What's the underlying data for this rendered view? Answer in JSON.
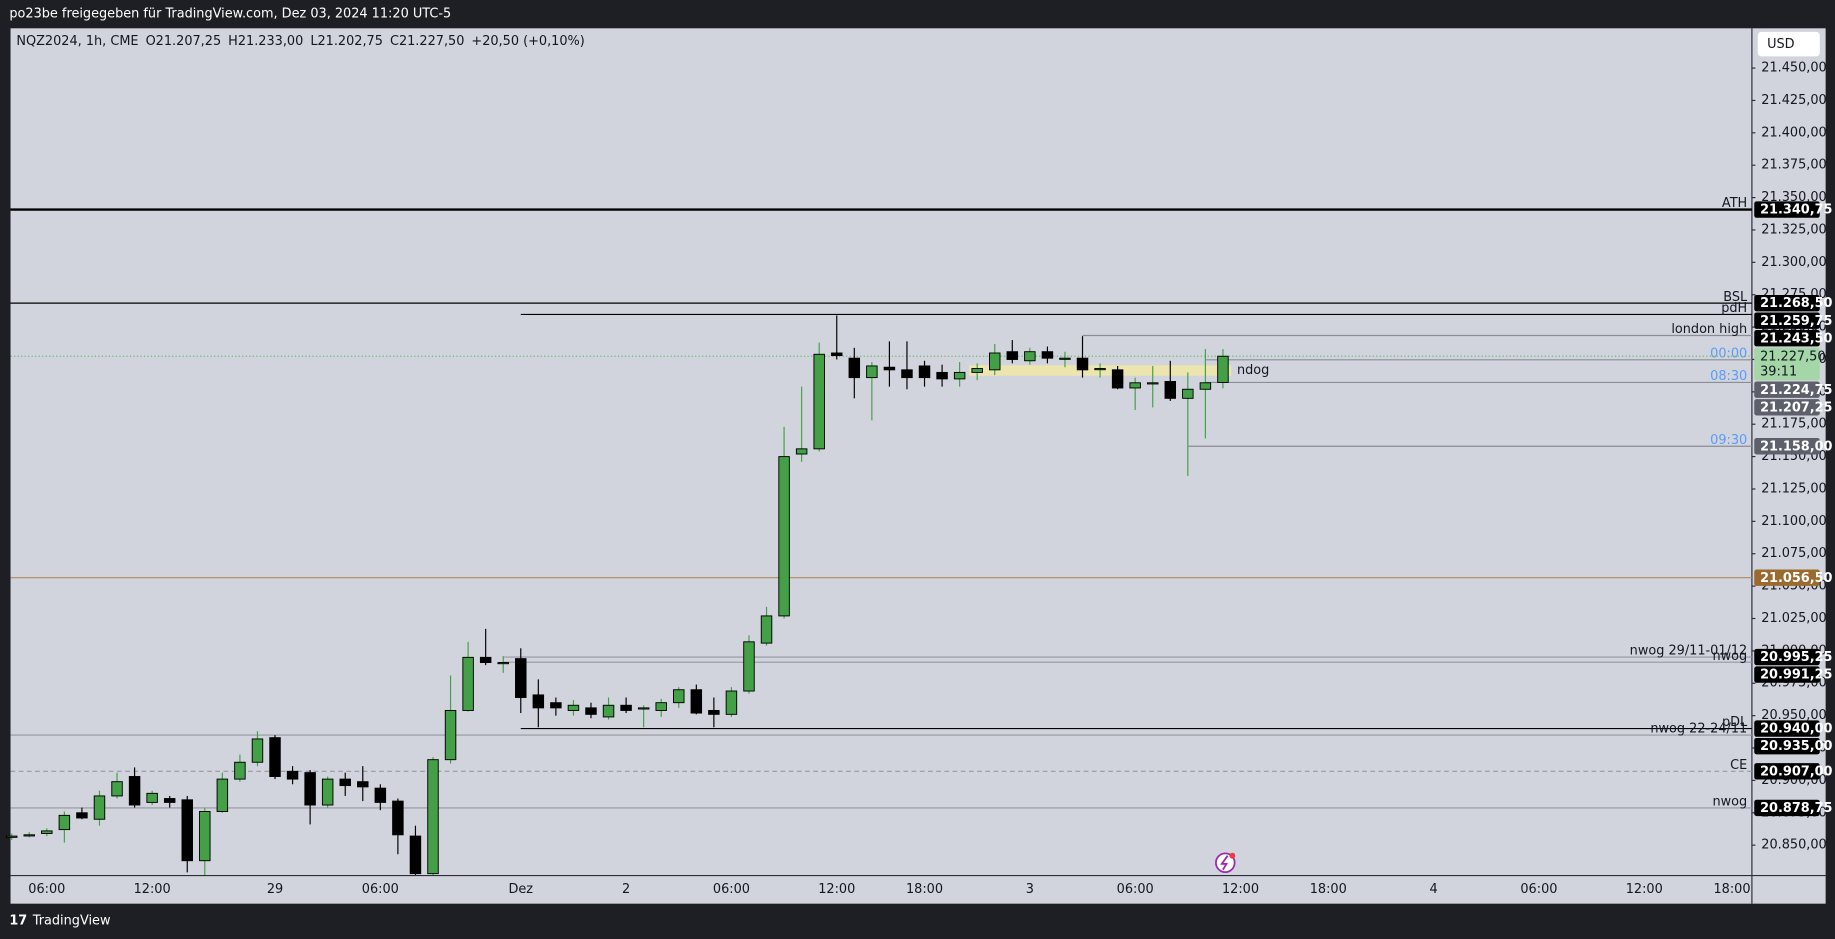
{
  "header": {
    "title": "po23be freigegeben für TradingView.com, Dez 03, 2024 11:20 UTC-5"
  },
  "footer": {
    "brand": "TradingView"
  },
  "chart_data": {
    "type": "candlestick",
    "symbol": "NQZ2024, 1h, CME",
    "ohlc_text": [
      "O21.207,25",
      "H21.233,00",
      "L21.202,75",
      "C21.227,50",
      "+20,50 (+0,10%)"
    ],
    "currency": "USD",
    "x": [
      null,
      null,
      "06:00",
      null,
      null,
      null,
      null,
      null,
      "12:00",
      null,
      null,
      null,
      null,
      null,
      null,
      "29",
      null,
      null,
      null,
      null,
      null,
      "06:00",
      null,
      null,
      null,
      null,
      null,
      null,
      null,
      "Dez",
      null,
      null,
      null,
      null,
      null,
      "2",
      null,
      null,
      null,
      null,
      null,
      "06:00",
      null,
      null,
      null,
      null,
      null,
      "12:00",
      null,
      null,
      null,
      null,
      "18:00",
      null,
      null,
      null,
      null,
      null,
      "3",
      null,
      null,
      null,
      null,
      null,
      "06:00",
      null,
      null,
      null,
      null,
      null,
      "12:00",
      null,
      null,
      null,
      null,
      "18:00",
      null,
      null,
      null,
      null,
      null,
      "4",
      null,
      null,
      null,
      null,
      null,
      "06:00",
      null,
      null,
      null,
      null,
      null,
      "12:00",
      null,
      null,
      null,
      null,
      "18:00"
    ],
    "open": [
      20856,
      20858,
      20859,
      20862,
      20875,
      20870,
      20888,
      20903,
      20883,
      20886,
      20885,
      20838,
      20876,
      20901,
      20914,
      20933,
      20907,
      20906,
      20881,
      20901,
      20899,
      20894,
      20884,
      20857,
      20828,
      20916,
      20954,
      20995,
      20991,
      20994,
      20966,
      20960,
      20954,
      20956,
      20949,
      20958,
      20956,
      20954,
      20960,
      20970,
      20954,
      20951,
      20969,
      21006,
      21027,
      21152,
      21156,
      21230,
      21226,
      21211,
      21219,
      21217,
      21220,
      21215,
      21210,
      21215,
      21217,
      21231,
      21224,
      21231,
      21226,
      21226,
      21218,
      21217,
      21203,
      21207,
      21208,
      21195,
      21202,
      21207.25,
      null,
      null,
      null,
      null,
      null,
      null,
      null,
      null,
      null,
      null,
      null,
      null,
      null,
      null,
      null,
      null,
      null,
      null,
      null,
      null,
      null,
      null,
      null,
      null,
      null,
      null,
      null,
      null,
      null
    ],
    "high": [
      20859,
      20860,
      20863,
      20876,
      20879,
      20892,
      20906,
      20910,
      20892,
      20888,
      20888,
      20879,
      20906,
      20920,
      20938,
      20935,
      20911,
      20908,
      20903,
      20906,
      20911,
      20897,
      20886,
      20865,
      20918,
      20981,
      21007,
      21017,
      20996,
      21002,
      20978,
      20964,
      20962,
      20960,
      20964,
      20964,
      20958,
      20963,
      20972,
      20974,
      20964,
      20972,
      21012,
      21034,
      21173,
      21204,
      21238,
      21259,
      21234,
      21223,
      21239,
      21239,
      21224,
      21221,
      21223,
      21222,
      21237,
      21240,
      21234,
      21235,
      21231,
      21243,
      21222,
      21220,
      21211,
      21220,
      21224,
      21215,
      21233,
      21233,
      null,
      null,
      null,
      null,
      null,
      null,
      null,
      null,
      null,
      null,
      null,
      null,
      null,
      null,
      null,
      null,
      null,
      null,
      null,
      null,
      null,
      null,
      null,
      null,
      null,
      null,
      null,
      null,
      null
    ],
    "low": [
      20854,
      20856,
      20857,
      20852,
      20870,
      20865,
      20886,
      20879,
      20881,
      20879,
      20829,
      20827,
      20875,
      20899,
      20911,
      20901,
      20897,
      20866,
      20879,
      20888,
      20884,
      20877,
      20843,
      20827,
      20827,
      20913,
      20953,
      20989,
      20983,
      20952,
      20941,
      20950,
      20950,
      20948,
      20947,
      20952,
      20941,
      20949,
      20956,
      20951,
      20941,
      20949,
      20967,
      21004,
      21025,
      21146,
      21154,
      21225,
      21195,
      21178,
      21204,
      21202,
      21204,
      21204,
      21204,
      21209,
      21213,
      21222,
      21221,
      21222,
      21219,
      21211,
      21211,
      21202,
      21186,
      21188,
      21193,
      21135,
      21164,
      21202.75,
      null,
      null,
      null,
      null,
      null,
      null,
      null,
      null,
      null,
      null,
      null,
      null,
      null,
      null,
      null,
      null,
      null,
      null,
      null,
      null,
      null,
      null,
      null,
      null,
      null,
      null,
      null,
      null,
      null
    ],
    "close": [
      20857,
      20858,
      20861,
      20873,
      20871,
      20888,
      20899,
      20881,
      20890,
      20883,
      20838,
      20876,
      20901,
      20914,
      20932,
      20903,
      20901,
      20881,
      20901,
      20896,
      20895,
      20883,
      20858,
      20828,
      20916,
      20954,
      20995,
      20991,
      20991,
      20964,
      20956,
      20956,
      20958,
      20951,
      20958,
      20954,
      20956,
      20960,
      20970,
      20952,
      20951,
      20969,
      21007,
      21027,
      21150,
      21156,
      21229,
      21228,
      21211,
      21220,
      21217,
      21211,
      21211,
      21210,
      21215,
      21218,
      21230,
      21225,
      21231,
      21226,
      21226,
      21217,
      21218,
      21203,
      21207,
      21207,
      21195,
      21202,
      21207,
      21227.5,
      null,
      null,
      null,
      null,
      null,
      null,
      null,
      null,
      null,
      null,
      null,
      null,
      null,
      null,
      null,
      null,
      null,
      null,
      null,
      null,
      null,
      null,
      null,
      null,
      null,
      null,
      null,
      null,
      null
    ],
    "up_color": "#43a047",
    "down_color": "#000000",
    "ylim": [
      20826.5,
      21480.7
    ],
    "yticks": [
      {
        "value": 21450,
        "label": "21.450,00"
      },
      {
        "value": 21425,
        "label": "21.425,00"
      },
      {
        "value": 21400,
        "label": "21.400,00"
      },
      {
        "value": 21375,
        "label": "21.375,00"
      },
      {
        "value": 21350,
        "label": "21.350,00"
      },
      {
        "value": 21325,
        "label": "21.325,00"
      },
      {
        "value": 21300,
        "label": "21.300,00"
      },
      {
        "value": 21275,
        "label": "21.275,00"
      },
      {
        "value": 21250,
        "label": "21.250,00"
      },
      {
        "value": 21225,
        "label": "21.225,00"
      },
      {
        "value": 21200,
        "label": "21.200,00"
      },
      {
        "value": 21175,
        "label": "21.175,00"
      },
      {
        "value": 21150,
        "label": "21.150,00"
      },
      {
        "value": 21125,
        "label": "21.125,00"
      },
      {
        "value": 21100,
        "label": "21.100,00"
      },
      {
        "value": 21075,
        "label": "21.075,00"
      },
      {
        "value": 21050,
        "label": "21.050,00"
      },
      {
        "value": 21025,
        "label": "21.025,00"
      },
      {
        "value": 21000,
        "label": "21.000,00"
      },
      {
        "value": 20975,
        "label": "20.975,00"
      },
      {
        "value": 20950,
        "label": "20.950,00"
      },
      {
        "value": 20925,
        "label": "20.925,00"
      },
      {
        "value": 20900,
        "label": "20.900,00"
      },
      {
        "value": 20875,
        "label": "20.875,00"
      },
      {
        "value": 20850,
        "label": "20.850,00"
      }
    ],
    "last_price": {
      "value": 21227.5,
      "label": "21.227,50",
      "countdown": "39:11",
      "color": "#a5d6a7"
    },
    "levels": [
      {
        "name": "ATH",
        "value": 21340.75,
        "value_label": "21.340,75",
        "color": "#000000",
        "line_color": "#000000",
        "width": 2
      },
      {
        "name": "BSL",
        "value": 21268.5,
        "value_label": "21.268,50",
        "color": "#000000",
        "line_color": "#000000",
        "width": 1
      },
      {
        "name": "pdH",
        "value": 21259.75,
        "value_label": "21.259,75",
        "color": "#000000",
        "line_color": "#000000",
        "width": 1,
        "from": 29
      },
      {
        "name": "london high",
        "value": 21243.5,
        "value_label": "21.243,50",
        "color": "#000000",
        "line_color": "#8a8d96",
        "width": 1,
        "from": 61
      },
      {
        "name": "00:00",
        "value": 21224.75,
        "value_label": "21.224,75",
        "color": "#5d606b",
        "line_color": "#8a8d96",
        "label_color": "#5b9cf6",
        "width": 1,
        "from": 68
      },
      {
        "name": "08:30",
        "value": 21207.25,
        "value_label": "21.207,25",
        "color": "#5d606b",
        "line_color": "#8a8d96",
        "label_color": "#5b9cf6",
        "width": 1,
        "from": 68
      },
      {
        "name": "09:30",
        "value": 21158,
        "value_label": "21.158,00",
        "color": "#5d606b",
        "line_color": "#8a8d96",
        "label_color": "#5b9cf6",
        "width": 1,
        "from": 67
      },
      {
        "value": 21056.5,
        "value_label": "21.056,50",
        "color": "#9c6a2e",
        "line_color": "#b08b62",
        "width": 1
      },
      {
        "name": "nwog 29/11-01/12",
        "value": 20995.25,
        "value_label": "20.995,25",
        "color": "#000000",
        "line_color": "#9598a1",
        "width": 1,
        "from": 28
      },
      {
        "name": "nwog",
        "value": 20991.25,
        "value_label": "20.991,25",
        "color": "#000000",
        "line_color": "#9598a1",
        "width": 1,
        "from": 28
      },
      {
        "name": "pDL",
        "value": 20940,
        "value_label": "20.940,00",
        "color": "#000000",
        "line_color": "#000000",
        "width": 1,
        "from": 29
      },
      {
        "name": "nwog 22-24/11",
        "value": 20935,
        "value_label": "20.935,00",
        "color": "#000000",
        "line_color": "#9598a1",
        "width": 1
      },
      {
        "name": "CE",
        "value": 20907,
        "value_label": "20.907,00",
        "color": "#000000",
        "line_color": "#9598a1",
        "width": 1,
        "dash": true
      },
      {
        "name": "nwog",
        "value": 20878.75,
        "value_label": "20.878,75",
        "color": "#000000",
        "line_color": "#9598a1",
        "width": 1
      }
    ],
    "zones": [
      {
        "label": "ndog",
        "top": 21220.5,
        "bottom": 21212.5,
        "from": 55,
        "to": 69,
        "color": "#f2e7a6"
      }
    ]
  }
}
